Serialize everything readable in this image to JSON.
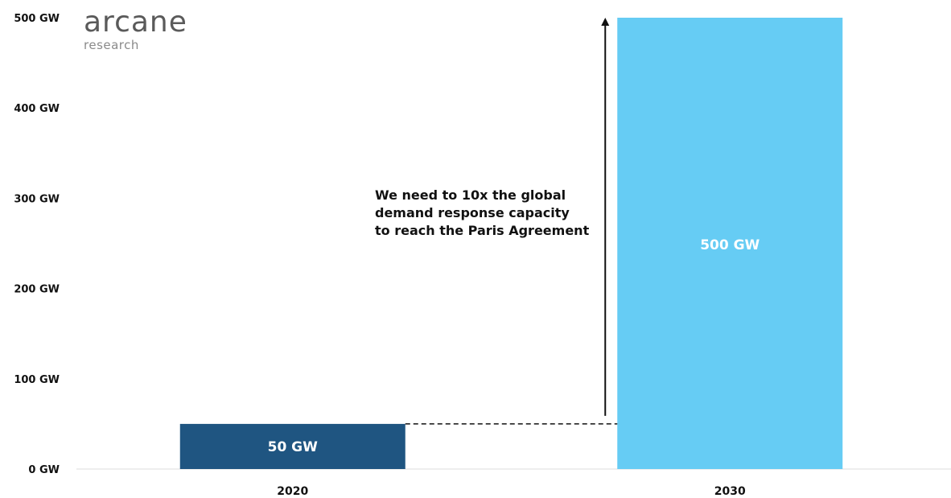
{
  "logo": {
    "name": "arcane",
    "tagline": "research"
  },
  "annotation": {
    "lines": [
      "We need to 10x the global",
      "demand response capacity",
      "to reach the Paris Agreement"
    ]
  },
  "colors": {
    "bar_2020": "#1f5581",
    "bar_2030": "#66ccf4",
    "axis": "#dddddd",
    "text": "#111111"
  },
  "chart_data": {
    "type": "bar",
    "categories": [
      "2020",
      "2030"
    ],
    "values": [
      50,
      500
    ],
    "data_labels": [
      "50 GW",
      "500 GW"
    ],
    "y_ticks": [
      {
        "value": 0,
        "label": "0 GW"
      },
      {
        "value": 100,
        "label": "100 GW"
      },
      {
        "value": 200,
        "label": "200 GW"
      },
      {
        "value": 300,
        "label": "300 GW"
      },
      {
        "value": 400,
        "label": "400 GW"
      },
      {
        "value": 500,
        "label": "500 GW"
      }
    ],
    "ylim": [
      0,
      500
    ],
    "title": "",
    "xlabel": "",
    "ylabel": "",
    "grid": false,
    "legend": "none"
  }
}
